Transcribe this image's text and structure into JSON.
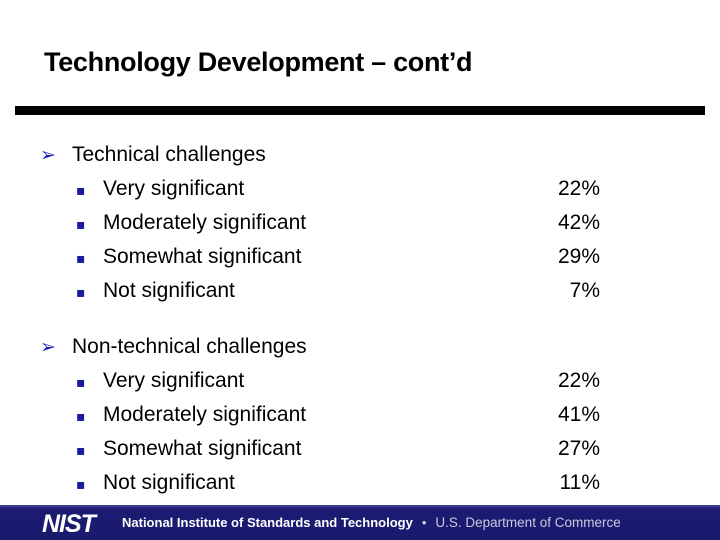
{
  "slide": {
    "title": "Technology Development – cont’d",
    "bullets": {
      "arrow": "➢",
      "square": "▪"
    },
    "groups": [
      {
        "heading": "Technical challenges",
        "items": [
          {
            "label": "Very significant",
            "value": "22%"
          },
          {
            "label": "Moderately significant",
            "value": "42%"
          },
          {
            "label": "Somewhat significant",
            "value": "29%"
          },
          {
            "label": "Not significant",
            "value": "7%"
          }
        ]
      },
      {
        "heading": "Non-technical challenges",
        "items": [
          {
            "label": "Very significant",
            "value": "22%"
          },
          {
            "label": "Moderately significant",
            "value": "41%"
          },
          {
            "label": "Somewhat significant",
            "value": "27%"
          },
          {
            "label": "Not significant",
            "value": "11%"
          }
        ]
      }
    ],
    "colors": {
      "title": "#000000",
      "rule": "#000000",
      "arrow_bullet": "#2222b2",
      "square_bullet": "#1b1b9e",
      "footer_background": "#1b1b72"
    }
  },
  "footer": {
    "logo": "NIST",
    "org": "National Institute of Standards and Technology",
    "separator": "•",
    "dept": "U.S. Department of Commerce"
  }
}
